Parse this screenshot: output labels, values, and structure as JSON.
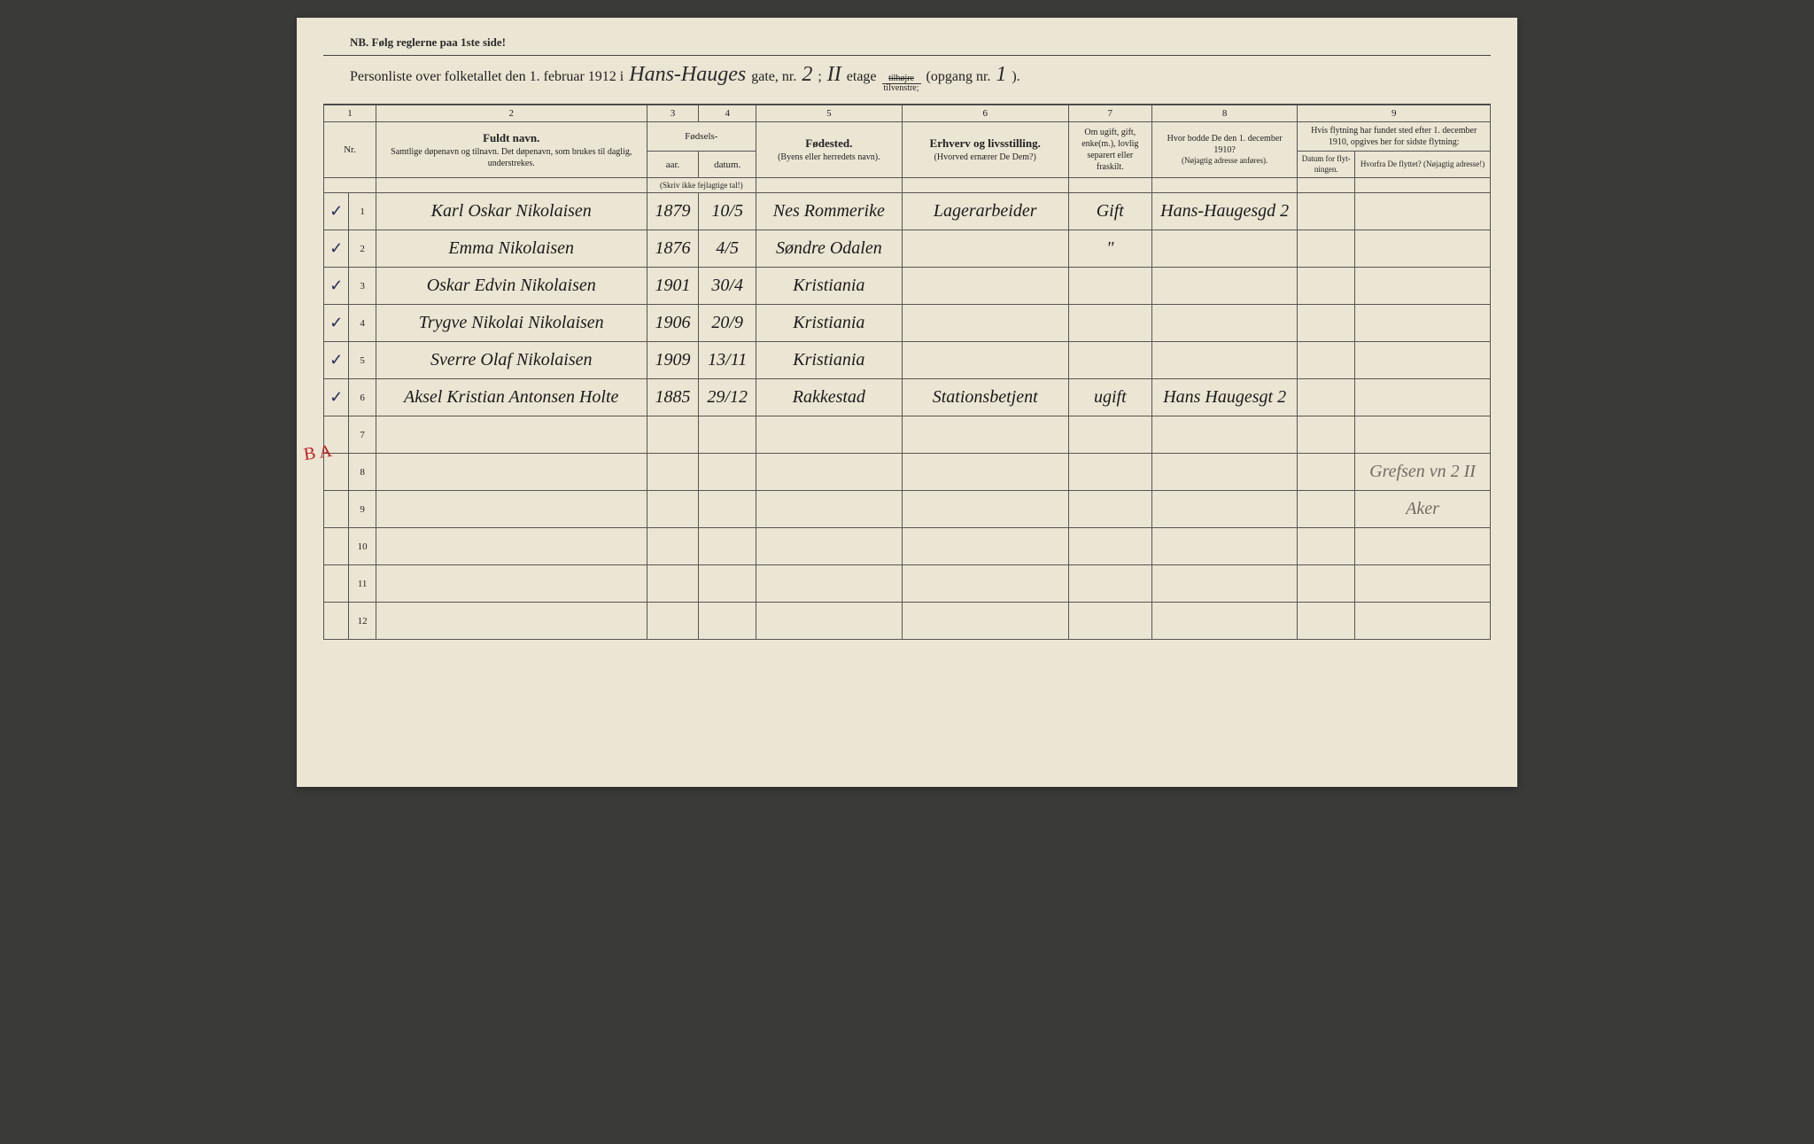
{
  "nb_text": "NB.  Følg reglerne paa 1ste side!",
  "header": {
    "prefix": "Personliste over folketallet den 1. februar 1912 i",
    "street": "Hans-Hauges",
    "gate_label": "gate, nr.",
    "gate_nr": "2",
    "etage_sep": ";",
    "etage_val": "II",
    "etage_label": "etage",
    "side_top": "tilhøjre",
    "side_bot": "tilvenstre;",
    "opgang_label": "(opgang nr.",
    "opgang_nr": "1",
    "opgang_close": ")."
  },
  "colnums": [
    "1",
    "2",
    "3",
    "4",
    "5",
    "6",
    "7",
    "8",
    "9"
  ],
  "headers": {
    "nr": "Nr.",
    "name_main": "Fuldt navn.",
    "name_sub": "Samtlige døpenavn og tilnavn. Det døpenavn, som brukes til daglig, understrekes.",
    "fodsels": "Fødsels-",
    "aar": "aar.",
    "datum": "datum.",
    "aar_sub": "(Skriv ikke fejlagtige tal!)",
    "fodested": "Fødested.",
    "fodested_sub": "(Byens eller herredets navn).",
    "erhverv": "Erhverv og livsstilling.",
    "erhverv_sub": "(Hvorved ernærer De Dem?)",
    "civil": "Om ugift, gift, enke(m.), lovlig separert eller fraskilt.",
    "addr1910": "Hvor bodde De den 1. december 1910?",
    "addr1910_sub": "(Nøjagtig adresse anføres).",
    "flyt_top": "Hvis flytning har fundet sted efter 1. december 1910, opgives her for sidste flytning:",
    "flyt_dat": "Datum for flyt-ningen.",
    "flyt_fra": "Hvorfra De flyttet? (Nøjagtig adresse!)"
  },
  "rows": [
    {
      "nr": "1",
      "chk": "✓",
      "name": "Karl Oskar Nikolaisen",
      "year": "1879",
      "date": "10/5",
      "place": "Nes Rommerike",
      "occ": "Lagerarbeider",
      "civ": "Gift",
      "addr": "Hans-Haugesgd 2",
      "fdat": "",
      "ffra": ""
    },
    {
      "nr": "2",
      "chk": "✓",
      "name": "Emma Nikolaisen",
      "year": "1876",
      "date": "4/5",
      "place": "Søndre Odalen",
      "occ": "",
      "civ": "\"",
      "addr": "",
      "fdat": "",
      "ffra": ""
    },
    {
      "nr": "3",
      "chk": "✓",
      "name": "Oskar Edvin Nikolaisen",
      "year": "1901",
      "date": "30/4",
      "place": "Kristiania",
      "occ": "",
      "civ": "",
      "addr": "",
      "fdat": "",
      "ffra": ""
    },
    {
      "nr": "4",
      "chk": "✓",
      "name": "Trygve Nikolai Nikolaisen",
      "year": "1906",
      "date": "20/9",
      "place": "Kristiania",
      "occ": "",
      "civ": "",
      "addr": "",
      "fdat": "",
      "ffra": ""
    },
    {
      "nr": "5",
      "chk": "✓",
      "name": "Sverre Olaf Nikolaisen",
      "year": "1909",
      "date": "13/11",
      "place": "Kristiania",
      "occ": "",
      "civ": "",
      "addr": "",
      "fdat": "",
      "ffra": ""
    },
    {
      "nr": "6",
      "chk": "✓",
      "name": "Aksel Kristian Antonsen Holte",
      "year": "1885",
      "date": "29/12",
      "place": "Rakkestad",
      "occ": "Stationsbetjent",
      "civ": "ugift",
      "addr": "Hans Haugesgt 2",
      "fdat": "",
      "ffra": ""
    },
    {
      "nr": "7",
      "chk": "",
      "name": "",
      "year": "",
      "date": "",
      "place": "",
      "occ": "",
      "civ": "",
      "addr": "",
      "fdat": "",
      "ffra": ""
    },
    {
      "nr": "8",
      "chk": "",
      "name": "",
      "year": "",
      "date": "",
      "place": "",
      "occ": "",
      "civ": "",
      "addr": "",
      "fdat": "",
      "ffra": "Grefsen vn 2 II"
    },
    {
      "nr": "9",
      "chk": "",
      "name": "",
      "year": "",
      "date": "",
      "place": "",
      "occ": "",
      "civ": "",
      "addr": "",
      "fdat": "",
      "ffra": "Aker"
    },
    {
      "nr": "10",
      "chk": "",
      "name": "",
      "year": "",
      "date": "",
      "place": "",
      "occ": "",
      "civ": "",
      "addr": "",
      "fdat": "",
      "ffra": ""
    },
    {
      "nr": "11",
      "chk": "",
      "name": "",
      "year": "",
      "date": "",
      "place": "",
      "occ": "",
      "civ": "",
      "addr": "",
      "fdat": "",
      "ffra": ""
    },
    {
      "nr": "12",
      "chk": "",
      "name": "",
      "year": "",
      "date": "",
      "place": "",
      "occ": "",
      "civ": "",
      "addr": "",
      "fdat": "",
      "ffra": ""
    }
  ],
  "red_annotation": "B A",
  "colors": {
    "paper": "#ebe5d3",
    "ink": "#2a2a2a",
    "rule": "#555555",
    "handwriting": "#1a1a1a",
    "pencil": "#888888",
    "red": "#c02020"
  }
}
